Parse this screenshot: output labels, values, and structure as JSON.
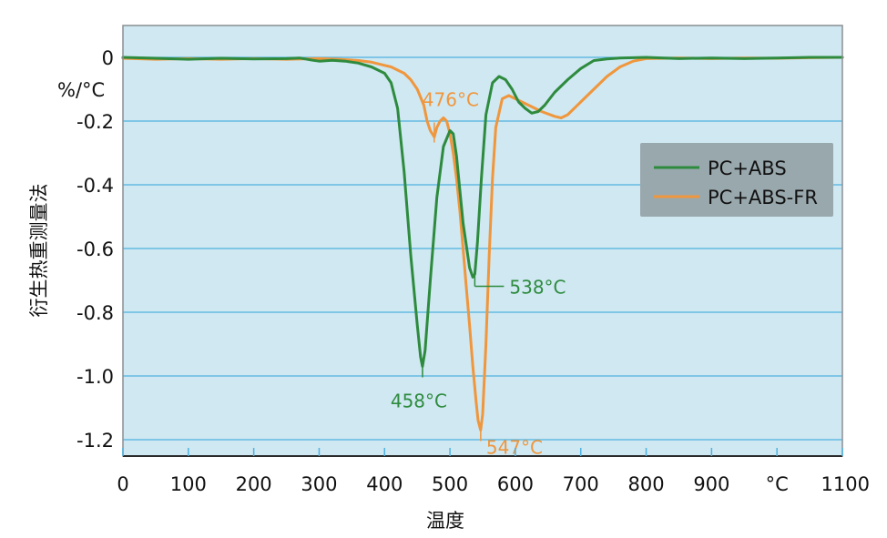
{
  "chart_data": {
    "type": "line",
    "xlabel": "温度",
    "ylabel": "衍生热重测量法",
    "y_unit": "%/°C",
    "x_unit": "°C",
    "xlim": [
      0,
      1100
    ],
    "ylim": [
      -1.25,
      0.1
    ],
    "x_ticks": [
      "0",
      "100",
      "200",
      "300",
      "400",
      "500",
      "600",
      "700",
      "800",
      "900",
      "°C",
      "1100"
    ],
    "y_ticks": [
      "0",
      "-0.2",
      "-0.4",
      "-0.6",
      "-0.8",
      "-1.0",
      "-1.2"
    ],
    "y_tick_values": [
      0,
      -0.2,
      -0.4,
      -0.6,
      -0.8,
      -1.0,
      -1.2
    ],
    "grid": "horizontal",
    "plot_background": "#cfe8f2",
    "legend": {
      "placement": "right"
    },
    "series": [
      {
        "name": "PC+ABS",
        "color": "#2e8b3e",
        "x": [
          0,
          50,
          100,
          150,
          200,
          250,
          270,
          290,
          300,
          320,
          340,
          360,
          380,
          400,
          410,
          420,
          430,
          440,
          450,
          455,
          458,
          462,
          470,
          480,
          490,
          500,
          505,
          510,
          520,
          530,
          535,
          538,
          542,
          548,
          555,
          565,
          575,
          585,
          595,
          605,
          615,
          625,
          635,
          645,
          660,
          680,
          700,
          720,
          740,
          760,
          800,
          850,
          900,
          950,
          1000,
          1050,
          1100
        ],
        "y": [
          0,
          -0.003,
          -0.006,
          -0.003,
          -0.005,
          -0.004,
          -0.002,
          -0.009,
          -0.012,
          -0.009,
          -0.012,
          -0.018,
          -0.03,
          -0.05,
          -0.08,
          -0.16,
          -0.36,
          -0.62,
          -0.84,
          -0.94,
          -0.97,
          -0.92,
          -0.7,
          -0.44,
          -0.28,
          -0.23,
          -0.24,
          -0.31,
          -0.52,
          -0.66,
          -0.69,
          -0.68,
          -0.58,
          -0.38,
          -0.18,
          -0.08,
          -0.06,
          -0.07,
          -0.1,
          -0.14,
          -0.16,
          -0.175,
          -0.17,
          -0.15,
          -0.11,
          -0.07,
          -0.035,
          -0.01,
          -0.005,
          -0.002,
          0.0,
          -0.004,
          -0.002,
          -0.004,
          -0.002,
          0.0,
          0.0
        ]
      },
      {
        "name": "PC+ABS-FR",
        "color": "#f0963c",
        "x": [
          0,
          50,
          100,
          150,
          200,
          250,
          300,
          330,
          360,
          380,
          400,
          410,
          420,
          430,
          440,
          450,
          460,
          465,
          470,
          476,
          480,
          485,
          490,
          495,
          500,
          505,
          510,
          515,
          520,
          525,
          530,
          535,
          540,
          543,
          547,
          550,
          555,
          560,
          565,
          570,
          580,
          590,
          600,
          620,
          640,
          660,
          670,
          680,
          700,
          720,
          740,
          760,
          780,
          800,
          850,
          900,
          950,
          1000,
          1050,
          1100
        ],
        "y": [
          -0.003,
          -0.006,
          -0.004,
          -0.006,
          -0.004,
          -0.006,
          -0.004,
          -0.006,
          -0.01,
          -0.015,
          -0.025,
          -0.03,
          -0.04,
          -0.05,
          -0.07,
          -0.1,
          -0.15,
          -0.2,
          -0.23,
          -0.25,
          -0.22,
          -0.2,
          -0.19,
          -0.2,
          -0.24,
          -0.3,
          -0.38,
          -0.48,
          -0.6,
          -0.72,
          -0.84,
          -0.97,
          -1.08,
          -1.14,
          -1.17,
          -1.12,
          -0.9,
          -0.62,
          -0.38,
          -0.22,
          -0.13,
          -0.12,
          -0.13,
          -0.15,
          -0.17,
          -0.185,
          -0.19,
          -0.18,
          -0.14,
          -0.1,
          -0.06,
          -0.03,
          -0.012,
          -0.004,
          -0.002,
          -0.004,
          -0.002,
          -0.003,
          -0.001,
          0.0
        ]
      }
    ],
    "annotations": [
      {
        "text": "476°C",
        "series": 1,
        "x": 476,
        "y": -0.25,
        "color": "#f0963c"
      },
      {
        "text": "458°C",
        "series": 0,
        "x": 458,
        "y": -0.97,
        "color": "#2e8b3e"
      },
      {
        "text": "538°C",
        "series": 0,
        "x": 538,
        "y": -0.69,
        "color": "#2e8b3e"
      },
      {
        "text": "547°C",
        "series": 1,
        "x": 547,
        "y": -1.17,
        "color": "#f0963c"
      }
    ]
  }
}
